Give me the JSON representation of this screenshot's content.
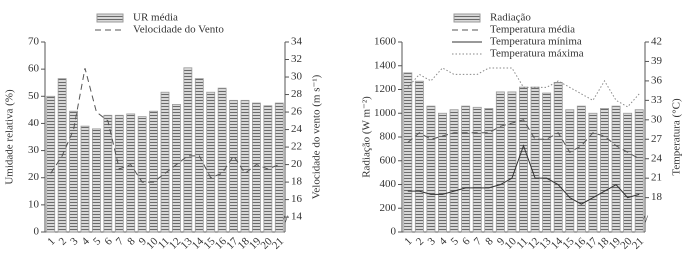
{
  "chart_data": [
    {
      "type": "bar",
      "categories": [
        "1",
        "2",
        "3",
        "4",
        "5",
        "6",
        "7",
        "8",
        "9",
        "10",
        "11",
        "12",
        "13",
        "14",
        "15",
        "16",
        "17",
        "18",
        "19",
        "20",
        "21"
      ],
      "ylabel": "Umidade relativa (%)",
      "y2label": "Velocidade do vento (m s⁻¹)",
      "ylim": [
        0,
        70
      ],
      "yticks": [
        0,
        10,
        20,
        30,
        40,
        50,
        60,
        70
      ],
      "y2lim": [
        12.3,
        34
      ],
      "y2ticks": [
        14,
        16,
        18,
        20,
        22,
        24,
        26,
        28,
        30,
        32,
        34
      ],
      "series": [
        {
          "name": "UR média",
          "color": "#9a9a9a",
          "values": [
            50,
            56.5,
            44.5,
            39,
            38,
            43,
            43,
            43.5,
            42.5,
            44.5,
            51.5,
            47,
            60.5,
            56.5,
            51.5,
            53,
            48.5,
            48.5,
            47.5,
            46.5,
            47.5
          ]
        },
        {
          "name": "Velocidade do Vento",
          "color": "#555555",
          "dash": "dashed",
          "axis": "y2",
          "values": [
            19,
            21,
            24,
            31,
            26,
            25,
            19.5,
            20,
            18,
            18,
            19,
            20,
            21,
            21,
            18.5,
            19,
            21,
            19,
            20,
            19.5,
            20
          ]
        }
      ]
    },
    {
      "type": "bar",
      "categories": [
        "1",
        "2",
        "3",
        "4",
        "5",
        "6",
        "7",
        "8",
        "9",
        "10",
        "11",
        "12",
        "13",
        "14",
        "15",
        "16",
        "17",
        "18",
        "19",
        "20",
        "21"
      ],
      "ylabel": "Radiação (W m⁻²)",
      "y2label": "Temperatura (°C)",
      "ylim": [
        0,
        1600
      ],
      "yticks": [
        0,
        200,
        400,
        600,
        800,
        1000,
        1200,
        1400,
        1600
      ],
      "y2lim": [
        12.7,
        42
      ],
      "y2ticks": [
        18,
        21,
        24,
        27,
        30,
        33,
        36,
        39,
        42
      ],
      "series": [
        {
          "name": "Radiação",
          "color": "#9a9a9a",
          "values": [
            1340,
            1270,
            1060,
            1000,
            1030,
            1060,
            1050,
            1040,
            1180,
            1180,
            1220,
            1220,
            1170,
            1260,
            1030,
            1060,
            1000,
            1040,
            1060,
            1000,
            1030
          ]
        },
        {
          "name": "Temperatura média",
          "color": "#555555",
          "dash": "dashed",
          "axis": "y2",
          "values": [
            26.5,
            28,
            27,
            27.5,
            28,
            28,
            28,
            28,
            29,
            29.5,
            30,
            27,
            27,
            28,
            25,
            26,
            28,
            27.5,
            26,
            25,
            24
          ]
        },
        {
          "name": "Temperatura mínima",
          "color": "#333333",
          "dash": "solid",
          "axis": "y2",
          "values": [
            19,
            19,
            18.5,
            18.5,
            19,
            19.5,
            19.5,
            19.5,
            20,
            21,
            26,
            21,
            21,
            20,
            18,
            17,
            18,
            19,
            20,
            18,
            18.5
          ]
        },
        {
          "name": "Temperatura máxima",
          "color": "#888888",
          "dash": "dotted",
          "axis": "y2",
          "values": [
            35,
            37,
            36,
            38,
            37,
            37,
            37,
            38,
            38,
            38,
            35,
            35,
            35,
            36,
            35,
            34,
            33,
            36,
            33,
            32,
            34
          ]
        }
      ]
    }
  ]
}
